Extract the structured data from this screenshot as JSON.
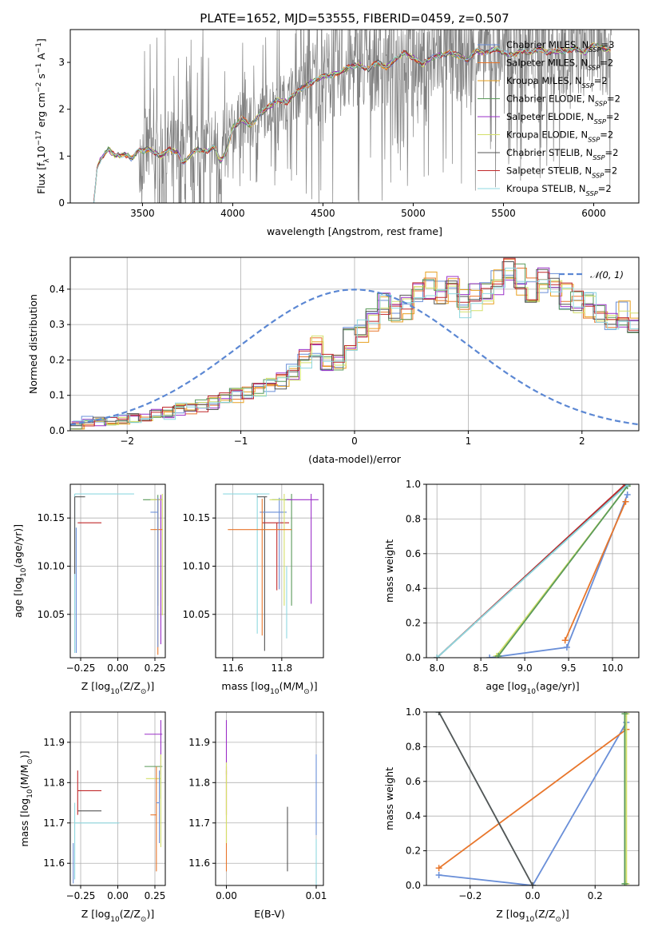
{
  "colors": [
    "#6a8fd8",
    "#e8762b",
    "#e8a020",
    "#5a9a5a",
    "#9b30c8",
    "#d4e06a",
    "#555555",
    "#c0282a",
    "#8fd8e0"
  ],
  "gauss_color": "#5b87d3",
  "chart_data": [
    {
      "id": "spectrum",
      "type": "line",
      "title": "PLATE=1652, MJD=53555, FIBERID=0459, z=0.507",
      "xlabel": "wavelength [Angstrom, rest frame]",
      "ylabel_parts": [
        "Flux [",
        "f",
        "λ",
        "10",
        "−17",
        " erg cm",
        "−2",
        " s",
        "−1",
        " A",
        "−1",
        "]"
      ],
      "xlim": [
        3100,
        6250
      ],
      "ylim": [
        0,
        3.7
      ],
      "xticks": [
        3500,
        4000,
        4500,
        5000,
        5500,
        6000
      ],
      "yticks": [
        0,
        1,
        2,
        3
      ],
      "xtick_labels": [
        "3500",
        "4000",
        "4500",
        "5000",
        "5500",
        "6000"
      ],
      "ytick_labels": [
        "0",
        "1",
        "2",
        "3"
      ],
      "data_start": 3230,
      "data_end": 6100,
      "continuum": {
        "x": [
          3230,
          3250,
          3280,
          3310,
          3350,
          3400,
          3440,
          3480,
          3500,
          3530,
          3560,
          3600,
          3650,
          3700,
          3720,
          3750,
          3800,
          3850,
          3900,
          3930,
          3960,
          4000,
          4050,
          4100,
          4150,
          4200,
          4250,
          4300,
          4350,
          4400,
          4450,
          4500,
          4550,
          4600,
          4650,
          4700,
          4750,
          4800,
          4850,
          4900,
          4950,
          5000,
          5050,
          5100,
          5150,
          5200,
          5250,
          5300,
          5350,
          5400,
          5450,
          5500,
          5550,
          5600,
          5650,
          5700,
          5750,
          5800,
          5850,
          5900,
          5950,
          6000,
          6050,
          6100
        ],
        "y": [
          0.0,
          0.8,
          1.0,
          1.15,
          1.0,
          1.05,
          0.95,
          1.12,
          1.1,
          1.15,
          1.1,
          1.0,
          1.15,
          1.05,
          0.85,
          0.95,
          1.15,
          1.1,
          1.2,
          0.9,
          1.05,
          1.6,
          1.8,
          1.65,
          1.9,
          2.05,
          2.2,
          2.15,
          2.35,
          2.5,
          2.6,
          2.7,
          2.72,
          2.8,
          2.9,
          2.95,
          2.85,
          3.0,
          2.9,
          3.05,
          3.2,
          3.1,
          2.95,
          3.1,
          3.15,
          3.2,
          3.15,
          3.05,
          3.25,
          3.2,
          3.3,
          3.2,
          3.15,
          3.25,
          3.2,
          3.3,
          3.2,
          3.25,
          3.25,
          3.3,
          3.2,
          3.4,
          3.3,
          3.25
        ]
      },
      "legend": [
        {
          "name": "Chabrier MILES, N",
          "sub": "SSP",
          "val": "=3"
        },
        {
          "name": "Salpeter MILES, N",
          "sub": "SSP",
          "val": "=2"
        },
        {
          "name": "Kroupa MILES, N",
          "sub": "SSP",
          "val": "=2"
        },
        {
          "name": "Chabrier ELODIE, N",
          "sub": "SSP",
          "val": "=2"
        },
        {
          "name": "Salpeter ELODIE, N",
          "sub": "SSP",
          "val": "=2"
        },
        {
          "name": "Kroupa ELODIE, N",
          "sub": "SSP",
          "val": "=2"
        },
        {
          "name": "Chabrier STELIB, N",
          "sub": "SSP",
          "val": "=2"
        },
        {
          "name": "Salpeter STELIB, N",
          "sub": "SSP",
          "val": "=2"
        },
        {
          "name": "Kroupa STELIB, N",
          "sub": "SSP",
          "val": "=2"
        }
      ]
    },
    {
      "id": "residuals",
      "type": "histogram",
      "xlabel": "(data-model)/error",
      "ylabel": "Normed distribution",
      "xlim": [
        -2.5,
        2.5
      ],
      "ylim": [
        0,
        0.49
      ],
      "xticks": [
        -2,
        -1,
        0,
        1,
        2
      ],
      "yticks": [
        0,
        0.1,
        0.2,
        0.3,
        0.4
      ],
      "xtick_labels": [
        "−2",
        "−1",
        "0",
        "1",
        "2"
      ],
      "ytick_labels": [
        "0.0",
        "0.1",
        "0.2",
        "0.3",
        "0.4"
      ],
      "bin_start": -2.5,
      "bin_width": 0.1,
      "base": [
        0.02,
        0.025,
        0.03,
        0.03,
        0.03,
        0.035,
        0.04,
        0.045,
        0.05,
        0.06,
        0.065,
        0.07,
        0.08,
        0.09,
        0.1,
        0.11,
        0.12,
        0.125,
        0.14,
        0.165,
        0.2,
        0.24,
        0.19,
        0.2,
        0.26,
        0.28,
        0.32,
        0.36,
        0.34,
        0.35,
        0.38,
        0.41,
        0.39,
        0.4,
        0.36,
        0.38,
        0.4,
        0.42,
        0.44,
        0.43,
        0.4,
        0.42,
        0.4,
        0.38,
        0.37,
        0.35,
        0.34,
        0.32,
        0.33,
        0.3,
        0.28,
        0.26,
        0.25,
        0.24,
        0.22,
        0.2,
        0.19,
        0.18,
        0.16,
        0.14,
        0.12,
        0.12,
        0.1,
        0.1,
        0.09,
        0.08,
        0.08,
        0.07,
        0.07,
        0.06,
        0.06,
        0.06,
        0.055,
        0.05,
        0.05,
        0.045,
        0.04,
        0.04,
        0.035,
        0.03
      ],
      "gauss_label": "𝒩(0, 1)"
    },
    {
      "id": "age-vs-Z",
      "type": "errorbar",
      "xlabel_parts": [
        "Z [log",
        "10",
        "(Z/Z",
        "⊙",
        ")]"
      ],
      "ylabel_parts": [
        "age  [log",
        "10",
        "(age/yr)]"
      ],
      "xlim": [
        -0.32,
        0.32
      ],
      "ylim": [
        10.005,
        10.185
      ],
      "xticks": [
        -0.25,
        0,
        0.25
      ],
      "xtick_labels": [
        "−0.25",
        "0.00",
        "0.25"
      ],
      "yticks": [
        10.05,
        10.1,
        10.15
      ],
      "ytick_labels": [
        "10.05",
        "10.10",
        "10.15"
      ],
      "points": [
        {
          "c": 8,
          "x": -0.29,
          "xl": 0,
          "xh": 0.4,
          "y": 10.175,
          "yl": 0.165,
          "yh": 0
        },
        {
          "c": 6,
          "x": -0.29,
          "xl": 0,
          "xh": 0.07,
          "y": 10.172,
          "yl": 0.08,
          "yh": 0
        },
        {
          "c": 7,
          "x": -0.27,
          "xl": 0,
          "xh": 0.16,
          "y": 10.145,
          "yl": 0,
          "yh": 0
        },
        {
          "c": 0,
          "x": -0.28,
          "xl": 0,
          "xh": 0,
          "y": 10.14,
          "yl": 0.13,
          "yh": 0
        },
        {
          "c": 3,
          "x": 0.27,
          "xl": 0.1,
          "xh": 0.03,
          "y": 10.169,
          "yl": 0.11,
          "yh": 0.005
        },
        {
          "c": 4,
          "x": 0.29,
          "xl": 0.04,
          "xh": 0.01,
          "y": 10.169,
          "yl": 0.15,
          "yh": 0.005
        },
        {
          "c": 5,
          "x": 0.3,
          "xl": 0.08,
          "xh": 0,
          "y": 10.169,
          "yl": 0.12,
          "yh": 0.006
        },
        {
          "c": 1,
          "x": 0.27,
          "xl": 0.05,
          "xh": 0.03,
          "y": 10.138,
          "yl": 0.13,
          "yh": 0.032
        },
        {
          "c": 0,
          "x": 0.27,
          "xl": 0.05,
          "xh": 0,
          "y": 10.156,
          "yl": 0.14,
          "yh": 0.015
        }
      ]
    },
    {
      "id": "age-vs-mass",
      "type": "errorbar",
      "xlabel_parts": [
        "mass [log",
        "10",
        "(M/M",
        "⊙",
        ")]"
      ],
      "ylabel_parts": [],
      "xlim": [
        11.53,
        11.97
      ],
      "ylim": [
        10.005,
        10.185
      ],
      "xticks": [
        11.6,
        11.8
      ],
      "xtick_labels": [
        "11.6",
        "11.8"
      ],
      "yticks": [
        10.05,
        10.1,
        10.15
      ],
      "ytick_labels": [
        "10.05",
        "10.10",
        "10.15"
      ],
      "points": [
        {
          "c": 8,
          "x": 11.7,
          "xl": 0.14,
          "xh": 0.05,
          "y": 10.175,
          "yl": 0.145,
          "yh": 0
        },
        {
          "c": 6,
          "x": 11.73,
          "xl": 0.03,
          "xh": 0.01,
          "y": 10.172,
          "yl": 0.16,
          "yh": 0
        },
        {
          "c": 7,
          "x": 11.78,
          "xl": 0.06,
          "xh": 0.05,
          "y": 10.145,
          "yl": 0.07,
          "yh": 0
        },
        {
          "c": 0,
          "x": 11.79,
          "xl": 0.08,
          "xh": 0.03,
          "y": 10.156,
          "yl": 0.08,
          "yh": 0.015
        },
        {
          "c": 3,
          "x": 11.84,
          "xl": 0.08,
          "xh": 0,
          "y": 10.169,
          "yl": 0.11,
          "yh": 0.006
        },
        {
          "c": 4,
          "x": 11.92,
          "xl": 0.1,
          "xh": 0.03,
          "y": 10.169,
          "yl": 0.108,
          "yh": 0.006
        },
        {
          "c": 5,
          "x": 11.81,
          "xl": 0.06,
          "xh": 0,
          "y": 10.169,
          "yl": 0.11,
          "yh": 0.006
        },
        {
          "c": 1,
          "x": 11.72,
          "xl": 0.14,
          "xh": 0.12,
          "y": 10.138,
          "yl": 0.11,
          "yh": 0.032
        },
        {
          "c": 9,
          "x": 11.82,
          "xl": 0.0,
          "xh": 0.0,
          "y": 10.1,
          "yl": 0.075,
          "yh": 0.0
        }
      ]
    },
    {
      "id": "massweight-vs-age",
      "type": "line",
      "xlabel_parts": [
        "age  [log",
        "10",
        "(age/yr)]"
      ],
      "ylabel": "mass weight",
      "xlim": [
        7.88,
        10.3
      ],
      "ylim": [
        0,
        1
      ],
      "xticks": [
        8.0,
        8.5,
        9.0,
        9.5,
        10.0
      ],
      "xtick_labels": [
        "8.0",
        "8.5",
        "9.0",
        "9.5",
        "10.0"
      ],
      "yticks": [
        0,
        0.2,
        0.4,
        0.6,
        0.8,
        1.0
      ],
      "ytick_labels": [
        "0.0",
        "0.2",
        "0.4",
        "0.6",
        "0.8",
        "1.0"
      ],
      "series": [
        {
          "c": 0,
          "x": [
            8.6,
            9.48,
            10.17
          ],
          "y": [
            0.0,
            0.06,
            0.94
          ]
        },
        {
          "c": 1,
          "x": [
            9.46,
            10.15
          ],
          "y": [
            0.1,
            0.9
          ]
        },
        {
          "c": 5,
          "x": [
            8.68,
            10.17
          ],
          "y": [
            0.01,
            0.99
          ]
        },
        {
          "c": 3,
          "x": [
            8.7,
            10.17
          ],
          "y": [
            0.01,
            0.99
          ]
        },
        {
          "c": 7,
          "x": [
            8.0,
            10.145
          ],
          "y": [
            0.0,
            1.0
          ]
        },
        {
          "c": 6,
          "x": [
            8.0,
            10.17
          ],
          "y": [
            0.0,
            1.0
          ]
        },
        {
          "c": 8,
          "x": [
            8.0,
            10.175
          ],
          "y": [
            0.0,
            1.0
          ]
        }
      ]
    },
    {
      "id": "mass-vs-Z",
      "type": "errorbar",
      "xlabel_parts": [
        "Z [log",
        "10",
        "(Z/Z",
        "⊙",
        ")]"
      ],
      "ylabel_parts": [
        "mass [log",
        "10",
        "(M/M",
        "⊙",
        ")]"
      ],
      "xlim": [
        -0.32,
        0.32
      ],
      "ylim": [
        11.545,
        11.975
      ],
      "xticks": [
        -0.25,
        0,
        0.25
      ],
      "xtick_labels": [
        "−0.25",
        "0.00",
        "0.25"
      ],
      "yticks": [
        11.6,
        11.7,
        11.8,
        11.9
      ],
      "ytick_labels": [
        "11.6",
        "11.7",
        "11.8",
        "11.9"
      ],
      "points": [
        {
          "c": 8,
          "x": -0.29,
          "xl": 0,
          "xh": 0.3,
          "y": 11.7,
          "yl": 0.14,
          "yh": 0.05
        },
        {
          "c": 6,
          "x": -0.27,
          "xl": 0,
          "xh": 0.16,
          "y": 11.73,
          "yl": 0,
          "yh": 0
        },
        {
          "c": 7,
          "x": -0.27,
          "xl": 0,
          "xh": 0.16,
          "y": 11.78,
          "yl": 0.06,
          "yh": 0.05
        },
        {
          "c": 0,
          "x": -0.3,
          "xl": 0,
          "xh": 0,
          "y": 11.6,
          "yl": 0.05,
          "yh": 0.05
        },
        {
          "c": 3,
          "x": 0.29,
          "xl": 0.11,
          "xh": 0.01,
          "y": 11.84,
          "yl": 0.08,
          "yh": 0
        },
        {
          "c": 4,
          "x": 0.29,
          "xl": 0.11,
          "xh": 0.01,
          "y": 11.92,
          "yl": 0.1,
          "yh": 0.035
        },
        {
          "c": 5,
          "x": 0.29,
          "xl": 0.1,
          "xh": 0,
          "y": 11.81,
          "yl": 0.17,
          "yh": 0.06
        },
        {
          "c": 1,
          "x": 0.26,
          "xl": 0.04,
          "xh": 0,
          "y": 11.72,
          "yl": 0.14,
          "yh": 0.12
        },
        {
          "c": 0,
          "x": 0.28,
          "xl": 0.02,
          "xh": 0,
          "y": 11.75,
          "yl": 0.1,
          "yh": 0.08
        }
      ]
    },
    {
      "id": "mass-vs-EBV",
      "type": "errorbar",
      "xlabel": "E(B-V)",
      "ylabel_parts": [],
      "xlim": [
        -0.0012,
        0.0108
      ],
      "ylim": [
        11.545,
        11.975
      ],
      "xticks": [
        0.0,
        0.01
      ],
      "xtick_labels": [
        "0.00",
        "0.01"
      ],
      "yticks": [
        11.6,
        11.7,
        11.8,
        11.9
      ],
      "ytick_labels": [
        "11.6",
        "11.7",
        "11.8",
        "11.9"
      ],
      "points": [
        {
          "c": 4,
          "x": 0.0,
          "xl": 0,
          "xh": 0,
          "y": 11.92,
          "yl": 0.1,
          "yh": 0.035
        },
        {
          "c": 7,
          "x": 0.0,
          "xl": 0,
          "xh": 0,
          "y": 11.78,
          "yl": 0.06,
          "yh": 0.05
        },
        {
          "c": 1,
          "x": 0.0,
          "xl": 0,
          "xh": 0,
          "y": 11.72,
          "yl": 0.14,
          "yh": 0.12
        },
        {
          "c": 5,
          "x": 0.0,
          "xl": 0,
          "xh": 0,
          "y": 11.75,
          "yl": 0.1,
          "yh": 0.1
        },
        {
          "c": 6,
          "x": 0.0068,
          "xl": 0,
          "xh": 0,
          "y": 11.66,
          "yl": 0.08,
          "yh": 0.08
        },
        {
          "c": 0,
          "x": 0.01,
          "xl": 0,
          "xh": 0,
          "y": 11.77,
          "yl": 0.1,
          "yh": 0.1
        },
        {
          "c": 8,
          "x": 0.01,
          "xl": 0,
          "xh": 0,
          "y": 11.6,
          "yl": 0.06,
          "yh": 0.06
        }
      ]
    },
    {
      "id": "massweight-vs-Z",
      "type": "line",
      "xlabel_parts": [
        "Z [log",
        "10",
        "(Z/Z",
        "⊙",
        ")]"
      ],
      "ylabel": "mass weight",
      "xlim": [
        -0.34,
        0.34
      ],
      "ylim": [
        0,
        1
      ],
      "xticks": [
        -0.2,
        0,
        0.2
      ],
      "xtick_labels": [
        "−0.2",
        "0.0",
        "0.2"
      ],
      "yticks": [
        0,
        0.2,
        0.4,
        0.6,
        0.8,
        1.0
      ],
      "ytick_labels": [
        "0.0",
        "0.2",
        "0.4",
        "0.6",
        "0.8",
        "1.0"
      ],
      "series": [
        {
          "c": 0,
          "x": [
            -0.3,
            0.0,
            0.3
          ],
          "y": [
            0.06,
            0.0,
            0.94
          ]
        },
        {
          "c": 1,
          "x": [
            -0.3,
            0.3
          ],
          "y": [
            0.1,
            0.9
          ]
        },
        {
          "c": 8,
          "x": [
            -0.3,
            0.0
          ],
          "y": [
            1.0,
            0.0
          ]
        },
        {
          "c": 6,
          "x": [
            -0.3,
            0.0
          ],
          "y": [
            1.0,
            0.0
          ]
        },
        {
          "c": 5,
          "x": [
            0.3,
            0.3
          ],
          "y": [
            0.01,
            0.99
          ]
        },
        {
          "c": 3,
          "x": [
            0.295,
            0.295
          ],
          "y": [
            0.01,
            0.99
          ]
        }
      ]
    }
  ]
}
